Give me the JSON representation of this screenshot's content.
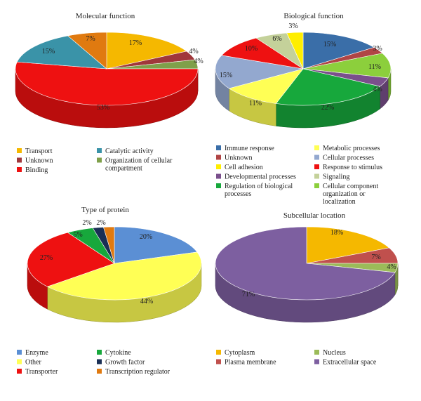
{
  "chart_data": [
    {
      "type": "pie",
      "title": "Molecular function",
      "slices": [
        {
          "label": "Transport",
          "value": 17,
          "pct_label": "17%",
          "color": "#f5b800"
        },
        {
          "label": "Unknown",
          "value": 4,
          "pct_label": "4%",
          "color": "#a0373b"
        },
        {
          "label": "Organization of cellular compartment",
          "value": 4,
          "pct_label": "4%",
          "color": "#7fa04a"
        },
        {
          "label": "Binding",
          "value": 53,
          "pct_label": "53%",
          "color": "#ee1111"
        },
        {
          "label": "Catalytic activity",
          "value": 15,
          "pct_label": "15%",
          "color": "#3a93a8"
        },
        {
          "label": "",
          "value": 7,
          "pct_label": "7%",
          "color": "#e07a10"
        }
      ],
      "legend": [
        {
          "label": "Transport",
          "color": "#f5b800"
        },
        {
          "label": "Unknown",
          "color": "#a0373b"
        },
        {
          "label": "Binding",
          "color": "#ee1111"
        },
        {
          "label": "Catalytic activity",
          "color": "#3a93a8"
        },
        {
          "label": "Organization of cellular compartment",
          "color": "#7fa04a"
        }
      ]
    },
    {
      "type": "pie",
      "title": "Biological function",
      "slices": [
        {
          "label": "Immune response",
          "value": 15,
          "pct_label": "15%",
          "color": "#3a6ea8"
        },
        {
          "label": "Unknown",
          "value": 3,
          "pct_label": "3%",
          "color": "#b04545"
        },
        {
          "label": "Cellular component organization or localization",
          "value": 11,
          "pct_label": "11%",
          "color": "#8ccf3c"
        },
        {
          "label": "Developmental processes",
          "value": 4,
          "pct_label": "4%",
          "color": "#7a4f8c"
        },
        {
          "label": "Regulation of biological processes",
          "value": 22,
          "pct_label": "22%",
          "color": "#17a83c"
        },
        {
          "label": "Metabolic processes",
          "value": 11,
          "pct_label": "11%",
          "color": "#ffff55"
        },
        {
          "label": "Cellular processes",
          "value": 15,
          "pct_label": "15%",
          "color": "#93a8cf"
        },
        {
          "label": "Response to stimulus",
          "value": 10,
          "pct_label": "10%",
          "color": "#ee1111"
        },
        {
          "label": "Signaling",
          "value": 6,
          "pct_label": "6%",
          "color": "#c4d19a"
        },
        {
          "label": "Cell adhesion",
          "value": 3,
          "pct_label": "3%",
          "color": "#ffee00"
        }
      ],
      "legend": [
        {
          "label": "Immune response",
          "color": "#3a6ea8"
        },
        {
          "label": "Unknown",
          "color": "#b04545"
        },
        {
          "label": "Cell adhesion",
          "color": "#ffee00"
        },
        {
          "label": "Developmental processes",
          "color": "#7a4f8c"
        },
        {
          "label": "Regulation of biological processes",
          "color": "#17a83c"
        },
        {
          "label": "Metabolic processes",
          "color": "#ffff55"
        },
        {
          "label": "Cellular processes",
          "color": "#93a8cf"
        },
        {
          "label": "Response to stimulus",
          "color": "#ee1111"
        },
        {
          "label": "Signaling",
          "color": "#c4d19a"
        },
        {
          "label": "Cellular component organization or localization",
          "color": "#8ccf3c"
        }
      ]
    },
    {
      "type": "pie",
      "title": "Type of protein",
      "slices": [
        {
          "label": "Enzyme",
          "value": 20,
          "pct_label": "20%",
          "color": "#5b8fd4"
        },
        {
          "label": "Other",
          "value": 44,
          "pct_label": "44%",
          "color": "#ffff55"
        },
        {
          "label": "Transporter",
          "value": 27,
          "pct_label": "27%",
          "color": "#ee1111"
        },
        {
          "label": "Cytokine",
          "value": 5,
          "pct_label": "5%",
          "color": "#17a83c"
        },
        {
          "label": "Growth factor",
          "value": 2,
          "pct_label": "2%",
          "color": "#1a2f55"
        },
        {
          "label": "Transcription regulator",
          "value": 2,
          "pct_label": "2%",
          "color": "#e07a10"
        }
      ],
      "legend": [
        {
          "label": "Enzyme",
          "color": "#5b8fd4"
        },
        {
          "label": "Other",
          "color": "#ffff55"
        },
        {
          "label": "Transporter",
          "color": "#ee1111"
        },
        {
          "label": "Cytokine",
          "color": "#17a83c"
        },
        {
          "label": "Growth factor",
          "color": "#1a2f55"
        },
        {
          "label": "Transcription regulator",
          "color": "#e07a10"
        }
      ]
    },
    {
      "type": "pie",
      "title": "Subcellular location",
      "slices": [
        {
          "label": "Cytoplasm",
          "value": 18,
          "pct_label": "18%",
          "color": "#f5b800"
        },
        {
          "label": "Plasma membrane",
          "value": 7,
          "pct_label": "7%",
          "color": "#c0504d"
        },
        {
          "label": "Nucleus",
          "value": 4,
          "pct_label": "4%",
          "color": "#9bbb59"
        },
        {
          "label": "Extracellular space",
          "value": 71,
          "pct_label": "71%",
          "color": "#7d5fa0"
        }
      ],
      "legend": [
        {
          "label": "Cytoplasm",
          "color": "#f5b800"
        },
        {
          "label": "Plasma membrane",
          "color": "#c0504d"
        },
        {
          "label": "Nucleus",
          "color": "#9bbb59"
        },
        {
          "label": "Extracellular space",
          "color": "#7d5fa0"
        }
      ]
    }
  ]
}
